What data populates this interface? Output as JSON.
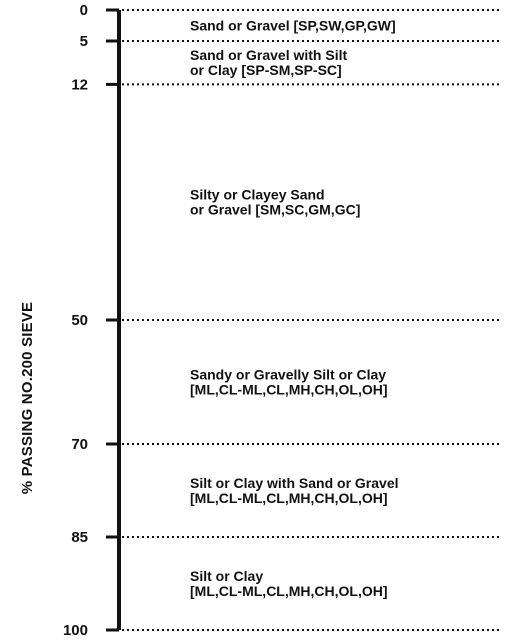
{
  "axis": {
    "label": "% PASSING NO.200 SIEVE",
    "min": 0,
    "max": 100
  },
  "boundaries": [
    "0",
    "5",
    "12",
    "50",
    "70",
    "85",
    "100"
  ],
  "zones": [
    {
      "from": 0,
      "to": 5,
      "lines": [
        "Sand or Gravel [SP,SW,GP,GW]"
      ]
    },
    {
      "from": 5,
      "to": 12,
      "lines": [
        "Sand or Gravel with Silt",
        "or Clay [SP-SM,SP-SC]"
      ]
    },
    {
      "from": 12,
      "to": 50,
      "lines": [
        "Silty or Clayey Sand",
        "or Gravel [SM,SC,GM,GC]"
      ]
    },
    {
      "from": 50,
      "to": 70,
      "lines": [
        "Sandy or Gravelly Silt or Clay",
        "[ML,CL-ML,CL,MH,CH,OL,OH]"
      ]
    },
    {
      "from": 70,
      "to": 85,
      "lines": [
        "Silt or Clay with Sand or Gravel",
        "[ML,CL-ML,CL,MH,CH,OL,OH]"
      ]
    },
    {
      "from": 85,
      "to": 100,
      "lines": [
        "Silt or Clay",
        "[ML,CL-ML,CL,MH,CH,OL,OH]"
      ]
    }
  ],
  "colors": {
    "ink": "#111111",
    "background": "#ffffff"
  }
}
